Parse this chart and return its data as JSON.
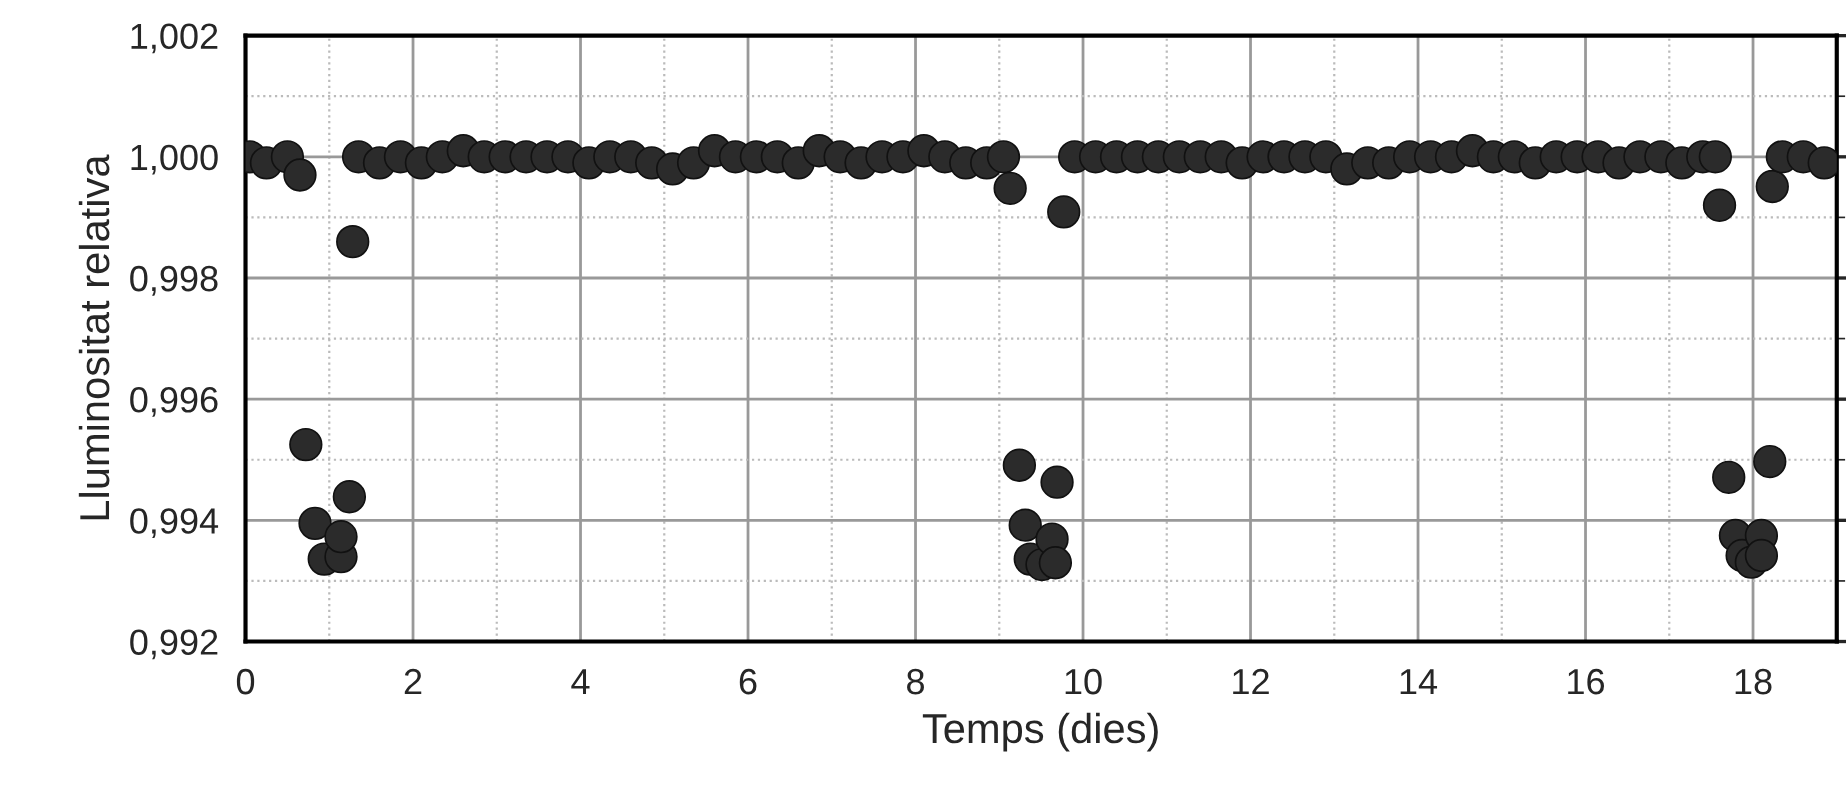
{
  "chart_data": {
    "type": "scatter",
    "xlabel": "Temps (dies)",
    "ylabel": "Lluminositat relativa",
    "xlim": [
      0,
      19
    ],
    "ylim": [
      0.992,
      1.002
    ],
    "xticks": [
      0,
      2,
      4,
      6,
      8,
      10,
      12,
      14,
      16,
      18
    ],
    "yticks": [
      {
        "value": 0.992,
        "label": "0,992"
      },
      {
        "value": 0.994,
        "label": "0,994"
      },
      {
        "value": 0.996,
        "label": "0,996"
      },
      {
        "value": 0.998,
        "label": "0,998"
      },
      {
        "value": 1.0,
        "label": "1,000"
      },
      {
        "value": 1.002,
        "label": "1,002"
      }
    ],
    "grid": true,
    "marker": "circle",
    "legend": false,
    "series": [
      {
        "color": "#2b2b2b",
        "x": [
          0.05,
          0.25,
          0.5,
          0.65,
          0.72,
          0.83,
          0.94,
          1.14,
          1.14,
          1.24,
          1.28,
          1.35,
          1.6,
          1.85,
          2.1,
          2.35,
          2.6,
          2.85,
          3.1,
          3.35,
          3.6,
          3.85,
          4.1,
          4.35,
          4.6,
          4.85,
          5.1,
          5.35,
          5.6,
          5.85,
          6.1,
          6.35,
          6.6,
          6.85,
          7.1,
          7.35,
          7.6,
          7.85,
          8.1,
          8.35,
          8.6,
          8.85,
          9.05,
          9.13,
          9.24,
          9.31,
          9.37,
          9.51,
          9.63,
          9.67,
          9.69,
          9.77,
          9.9,
          10.15,
          10.4,
          10.65,
          10.9,
          11.15,
          11.4,
          11.65,
          11.9,
          12.15,
          12.4,
          12.65,
          12.9,
          13.15,
          13.4,
          13.65,
          13.9,
          14.15,
          14.4,
          14.65,
          14.9,
          15.15,
          15.4,
          15.65,
          15.9,
          16.15,
          16.4,
          16.65,
          16.9,
          17.15,
          17.4,
          17.55,
          17.6,
          17.71,
          17.79,
          17.87,
          17.98,
          18.1,
          18.1,
          18.2,
          18.23,
          18.35,
          18.6,
          18.85
        ],
        "values": [
          1.0,
          0.9999,
          1.0,
          0.9997,
          0.99525,
          0.99395,
          0.99336,
          0.9934,
          0.99373,
          0.99439,
          0.9986,
          1.0,
          0.9999,
          1.0,
          0.9999,
          1.0,
          1.0001,
          1.0,
          1.0,
          1.0,
          1.0,
          1.0,
          0.9999,
          1.0,
          1.0,
          0.9999,
          0.9998,
          0.9999,
          1.0001,
          1.0,
          1.0,
          1.0,
          0.9999,
          1.0001,
          1.0,
          0.9999,
          1.0,
          1.0,
          1.0001,
          1.0,
          0.9999,
          0.9999,
          1.0,
          0.99948,
          0.99491,
          0.99392,
          0.99336,
          0.99327,
          0.99369,
          0.9933,
          0.99463,
          0.99909,
          1.0,
          1.0,
          1.0,
          1.0,
          1.0,
          1.0,
          1.0,
          1.0,
          0.9999,
          1.0,
          1.0,
          1.0,
          1.0,
          0.9998,
          0.9999,
          0.9999,
          1.0,
          1.0,
          1.0,
          1.0001,
          1.0,
          1.0,
          0.9999,
          1.0,
          1.0,
          1.0,
          0.9999,
          1.0,
          1.0,
          0.9999,
          1.0,
          1.0,
          0.9992,
          0.99471,
          0.99375,
          0.99342,
          0.99331,
          0.99375,
          0.99342,
          0.99497,
          0.99951,
          1.0,
          1.0,
          0.9999
        ]
      }
    ]
  }
}
